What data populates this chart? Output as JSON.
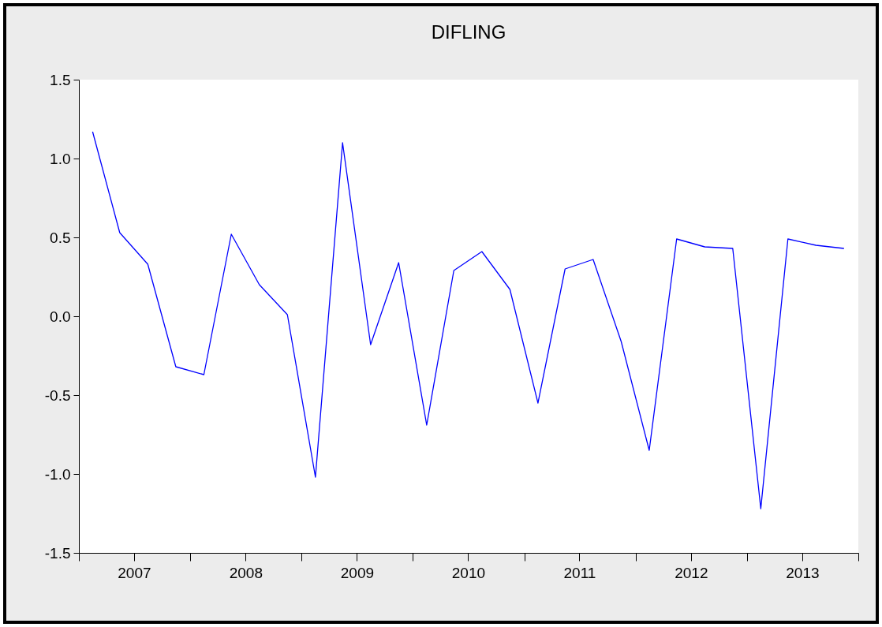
{
  "chart_data": {
    "type": "line",
    "title": "DIFLING",
    "x": [
      "2007-02-15",
      "2007-05-15",
      "2007-08-15",
      "2007-11-15",
      "2008-02-15",
      "2008-05-15",
      "2008-08-15",
      "2008-11-15",
      "2009-02-15",
      "2009-05-15",
      "2009-08-15",
      "2009-11-15",
      "2010-02-15",
      "2010-05-15",
      "2010-08-15",
      "2010-11-15",
      "2011-02-15",
      "2011-05-15",
      "2011-08-15",
      "2011-11-15",
      "2012-02-15",
      "2012-05-15",
      "2012-08-15",
      "2012-11-15",
      "2013-02-15",
      "2013-05-15",
      "2013-08-15",
      "2013-11-15"
    ],
    "series": [
      {
        "color": "#0000ff",
        "values": [
          1.17,
          0.53,
          0.33,
          -0.32,
          -0.37,
          0.52,
          0.2,
          0.01,
          -1.02,
          1.1,
          -0.18,
          0.34,
          -0.69,
          0.29,
          0.41,
          0.17,
          -0.55,
          0.3,
          0.36,
          -0.16,
          -0.85,
          0.49,
          0.44,
          0.43,
          -1.22,
          0.49,
          0.45,
          0.43
        ]
      }
    ],
    "xlim": [
      "2007-01-01",
      "2014-01-01"
    ],
    "xticks": [
      {
        "value": "2007-01-01",
        "label": null
      },
      {
        "value": "2007-07-01",
        "label": "2007"
      },
      {
        "value": "2008-01-01",
        "label": null
      },
      {
        "value": "2008-07-01",
        "label": "2008"
      },
      {
        "value": "2009-01-01",
        "label": null
      },
      {
        "value": "2009-07-01",
        "label": "2009"
      },
      {
        "value": "2010-01-01",
        "label": null
      },
      {
        "value": "2010-07-01",
        "label": "2010"
      },
      {
        "value": "2011-01-01",
        "label": null
      },
      {
        "value": "2011-07-01",
        "label": "2011"
      },
      {
        "value": "2012-01-01",
        "label": null
      },
      {
        "value": "2012-07-01",
        "label": "2012"
      },
      {
        "value": "2013-01-01",
        "label": null
      },
      {
        "value": "2013-07-01",
        "label": "2013"
      },
      {
        "value": "2014-01-01",
        "label": null
      }
    ],
    "ylim": [
      -1.5,
      1.5
    ],
    "yticks": [
      {
        "value": -1.5,
        "label": "-1.5"
      },
      {
        "value": -1,
        "label": "-1.0"
      },
      {
        "value": -0.5,
        "label": "-0.5"
      },
      {
        "value": 0,
        "label": "0.0"
      },
      {
        "value": 0.5,
        "label": "0.5"
      },
      {
        "value": 1,
        "label": "1.0"
      },
      {
        "value": 1.5,
        "label": "1.5"
      }
    ],
    "grid": false
  }
}
